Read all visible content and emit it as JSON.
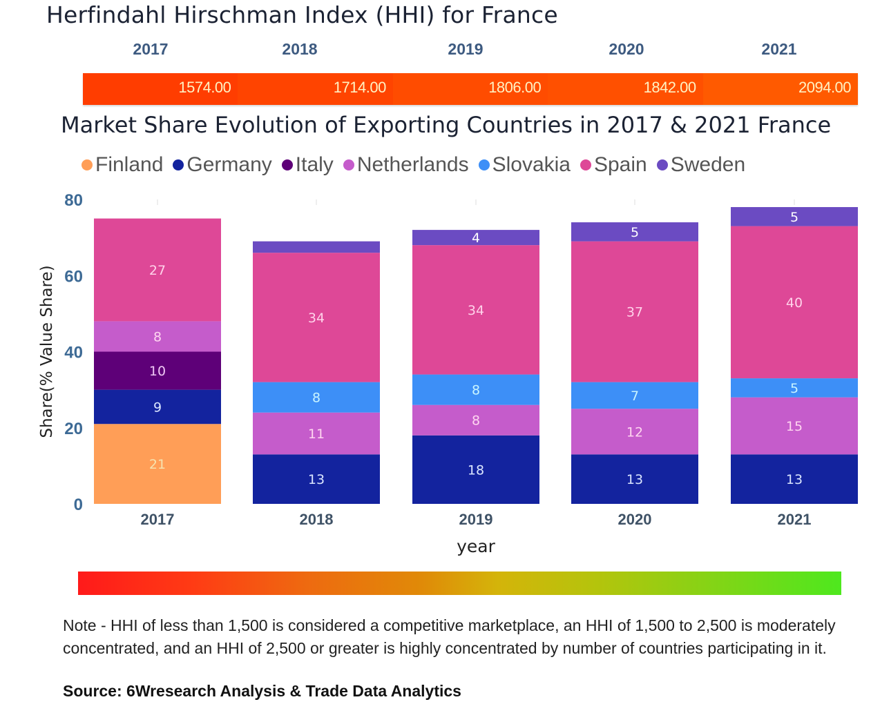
{
  "hhi": {
    "title": "Herfindahl Hirschman Index (HHI) for France",
    "years": [
      "2017",
      "2018",
      "2019",
      "2020",
      "2021"
    ],
    "values": [
      "1574.00",
      "1714.00",
      "1806.00",
      "1842.00",
      "2094.00"
    ],
    "cell_colors": [
      "#ff3d00",
      "#ff4400",
      "#ff4c00",
      "#ff5000",
      "#ff5a00"
    ]
  },
  "chart_data": {
    "type": "bar",
    "stacked": true,
    "title": "Market Share Evolution of Exporting Countries in 2017 & 2021 France",
    "xlabel": "year",
    "ylabel": "Share(% Value Share)",
    "categories": [
      "2017",
      "2018",
      "2019",
      "2020",
      "2021"
    ],
    "ylim": [
      0,
      80
    ],
    "yticks": [
      0,
      20,
      40,
      60,
      80
    ],
    "legend_position": "top",
    "grid": false,
    "series": [
      {
        "name": "Finland",
        "color": "#ff9e57",
        "values": [
          21,
          0,
          0,
          0,
          0
        ]
      },
      {
        "name": "Germany",
        "color": "#13239e",
        "values": [
          9,
          13,
          18,
          13,
          13
        ]
      },
      {
        "name": "Italy",
        "color": "#5e0078",
        "values": [
          10,
          0,
          0,
          0,
          0
        ]
      },
      {
        "name": "Netherlands",
        "color": "#c55ccb",
        "values": [
          8,
          11,
          8,
          12,
          15
        ]
      },
      {
        "name": "Slovakia",
        "color": "#3d8ff7",
        "values": [
          0,
          8,
          8,
          7,
          5
        ]
      },
      {
        "name": "Spain",
        "color": "#de4897",
        "values": [
          27,
          34,
          34,
          37,
          40
        ]
      },
      {
        "name": "Sweden",
        "color": "#6b4bc2",
        "values": [
          0,
          3,
          4,
          5,
          5
        ]
      }
    ],
    "labels_hidden": [
      [],
      [
        "Sweden"
      ],
      [],
      [],
      []
    ],
    "label_colors": {
      "Finland": "#f6e3b0",
      "Germany": "#dbe6ff",
      "Italy": "#f0c8f5",
      "Netherlands": "#ffd5f0",
      "Slovakia": "#c9f4ff",
      "Spain": "#ffd2ea",
      "Sweden": "#ffffff"
    }
  },
  "colorscale": {
    "from": "#ff1a1a",
    "to": "#4ee81e"
  },
  "note": "Note - HHI of less than 1,500 is considered a competitive marketplace, an HHI of 1,500 to 2,500 is moderately concentrated, and an HHI of 2,500 or greater is highly concentrated by number of countries participating in it.",
  "source": "Source: 6Wresearch Analysis & Trade Data Analytics"
}
